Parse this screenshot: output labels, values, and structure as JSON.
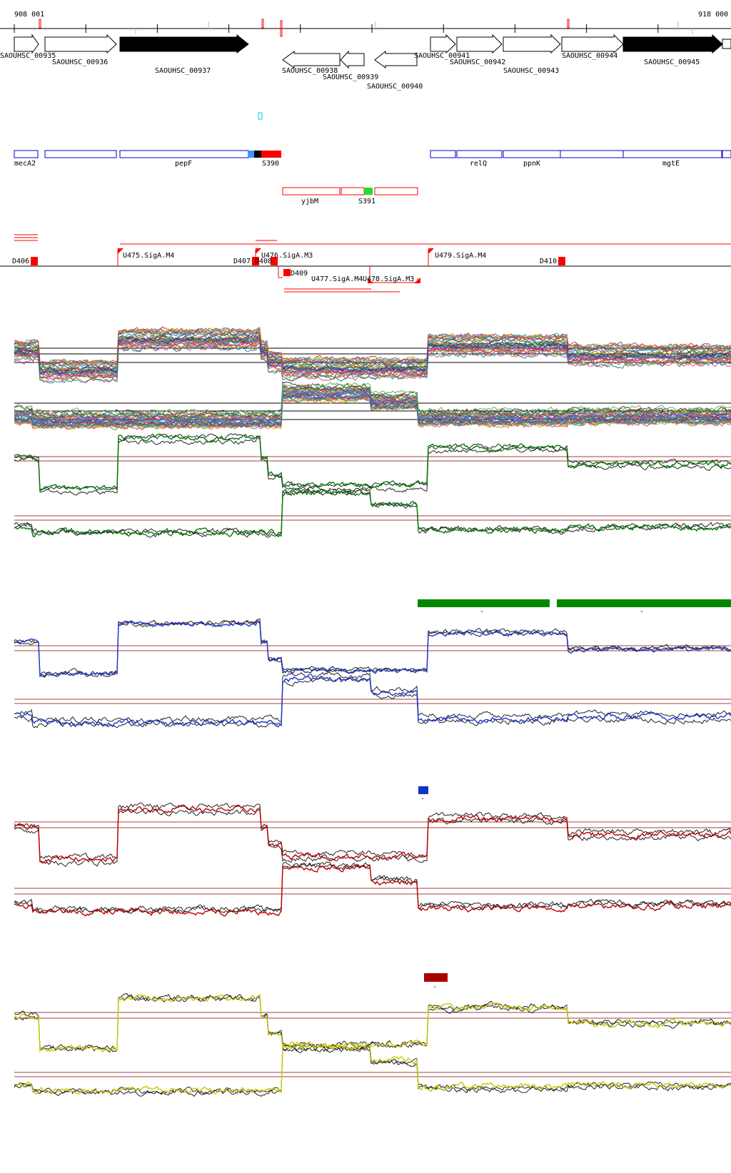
{
  "coordinates": {
    "start_label": "908 001",
    "end_label": "918 000"
  },
  "colors": {
    "accent_red": "#ff0000",
    "signal_green": "#007a00",
    "signal_blue": "#1f33cc",
    "signal_red": "#c00000",
    "signal_yellow": "#c8c800",
    "marker_cyan": "#00cccc",
    "marker_light_blue": "#3399ff",
    "marker_green": "#22dd22",
    "bar_green": "#008800",
    "bar_blue": "#1133cc",
    "bar_darkred": "#aa0000",
    "annotation_blue": "#0000cc"
  },
  "genes": [
    {
      "label": "SAOUHSC_00935",
      "strand": "+",
      "style": "open"
    },
    {
      "label": "SAOUHSC_00936",
      "strand": "+",
      "style": "open"
    },
    {
      "label": "SAOUHSC_00937",
      "strand": "+",
      "style": "filled"
    },
    {
      "label": "SAOUHSC_00938",
      "strand": "-",
      "style": "open"
    },
    {
      "label": "SAOUHSC_00939",
      "strand": "-",
      "style": "open"
    },
    {
      "label": "SAOUHSC_00940",
      "strand": "-",
      "style": "open"
    },
    {
      "label": "SAOUHSC_00941",
      "strand": "+",
      "style": "open"
    },
    {
      "label": "SAOUHSC_00942",
      "strand": "+",
      "style": "open"
    },
    {
      "label": "SAOUHSC_00943",
      "strand": "+",
      "style": "open"
    },
    {
      "label": "SAOUHSC_00944",
      "strand": "+",
      "style": "open"
    },
    {
      "label": "SAOUHSC_00945",
      "strand": "+",
      "style": "filled"
    }
  ],
  "plus_annotations": [
    "mecA2",
    "pepF",
    "S390",
    "relQ",
    "ppnK",
    "mgtE"
  ],
  "minus_annotations": [
    "yjbM",
    "S391"
  ],
  "upstream_labels": [
    "D406",
    "U475.SigA.M4",
    "D407",
    "D408",
    "U476.SigA.M3",
    "D409",
    "U477.SigA.M4",
    "U478.SigA.M3",
    "U479.SigA.M4",
    "D410"
  ],
  "condition_bars": [
    {
      "color": "green",
      "label": "-"
    },
    {
      "color": "green",
      "label": "-"
    },
    {
      "color": "blue",
      "label": "-"
    },
    {
      "color": "darkred",
      "label": "-"
    }
  ]
}
